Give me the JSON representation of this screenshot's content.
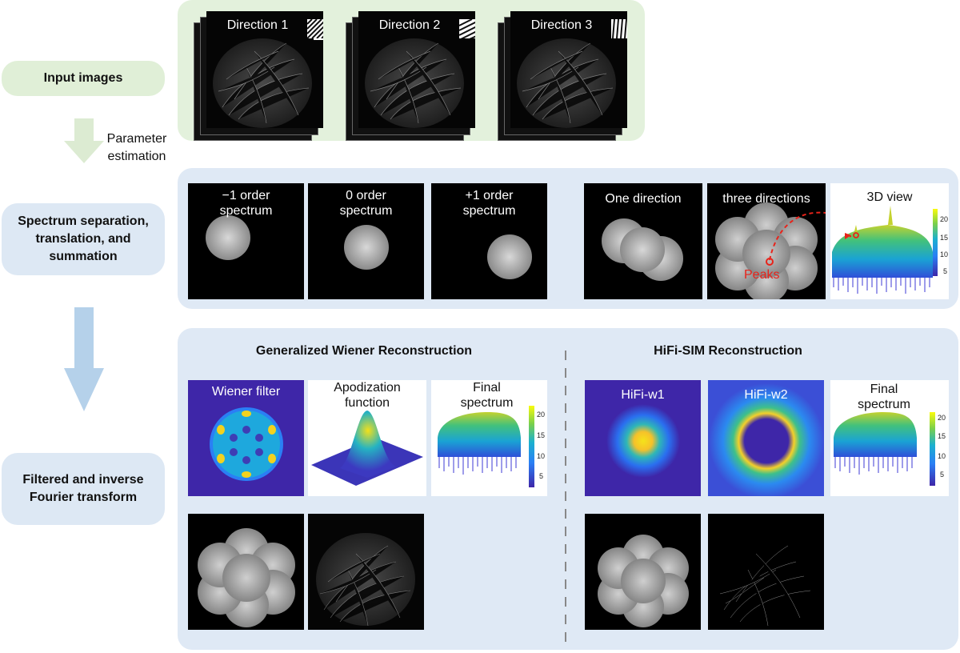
{
  "steps": [
    {
      "label": "Input images"
    },
    {
      "label": "Spectrum separation, translation, and summation"
    },
    {
      "label": "Filtered and inverse Fourier transform"
    }
  ],
  "arrow_label": "Parameter estimation",
  "input": {
    "directions": [
      "Direction 1",
      "Direction 2",
      "Direction 3"
    ]
  },
  "spectrum": {
    "tiles": [
      "−1 order spectrum",
      "0 order spectrum",
      "+1 order spectrum",
      "One direction",
      "three directions",
      "3D view"
    ],
    "peaks_label": "Peaks",
    "colorbar_ticks": [
      "20",
      "15",
      "10",
      "5"
    ]
  },
  "reconstruction": {
    "wiener": {
      "title": "Generalized Wiener Reconstruction",
      "tiles": [
        "Wiener filter",
        "Apodization function",
        "Final spectrum"
      ],
      "colorbar_ticks": [
        "20",
        "15",
        "10",
        "5"
      ]
    },
    "hifi": {
      "title": "HiFi-SIM Reconstruction",
      "tiles": [
        "HiFi-w1",
        "HiFi-w2",
        "Final spectrum"
      ],
      "colorbar_ticks": [
        "20",
        "15",
        "10",
        "5"
      ]
    }
  },
  "colors": {
    "input_panel": "#e3f1dc",
    "blue_panel": "#dfe9f5",
    "step_green": "#e0efd7",
    "step_blue": "#dde8f4",
    "arrow_green": "#dcebd2",
    "arrow_blue": "#b5d1ea",
    "peak_red": "#e8231a",
    "parula_dark": "#3e26a8"
  }
}
